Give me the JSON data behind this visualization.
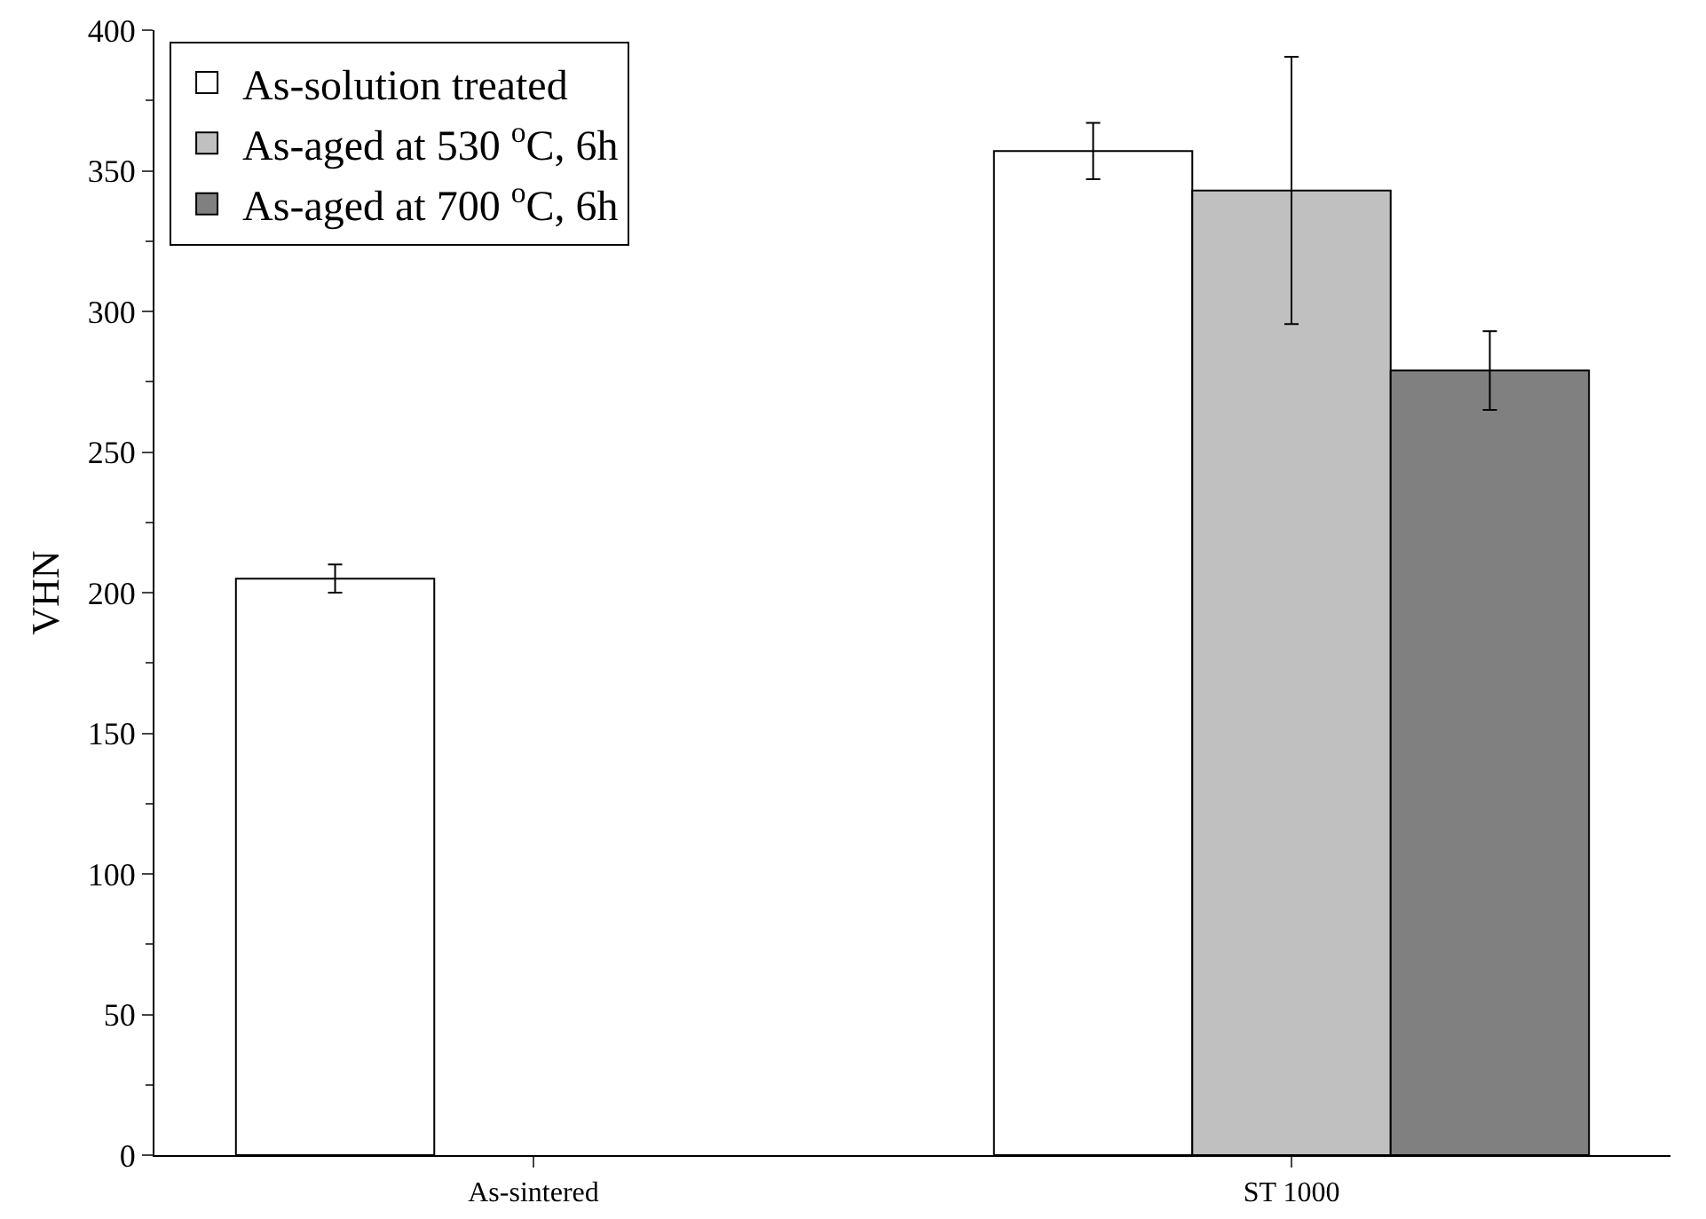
{
  "chart_data": {
    "type": "bar",
    "ylabel": "VHN",
    "categories": [
      "As-sintered",
      "ST 1000"
    ],
    "series": [
      {
        "name": "As-solution treated",
        "color": "#ffffff",
        "values": [
          205,
          357
        ],
        "errors": [
          5,
          10
        ]
      },
      {
        "name": "As-aged at 530 $^{o}$C, 6h",
        "color": "#c0c0c0",
        "values": [
          null,
          343
        ],
        "errors": [
          null,
          47.5
        ]
      },
      {
        "name": "As-aged at 700 $^{o}$C, 6h",
        "color": "#808080",
        "values": [
          null,
          279
        ],
        "errors": [
          null,
          14
        ]
      }
    ],
    "ylim": [
      0,
      400
    ],
    "yticks": [
      0,
      50,
      100,
      150,
      200,
      250,
      300,
      350,
      400
    ],
    "grid": false,
    "legend": "top left"
  }
}
